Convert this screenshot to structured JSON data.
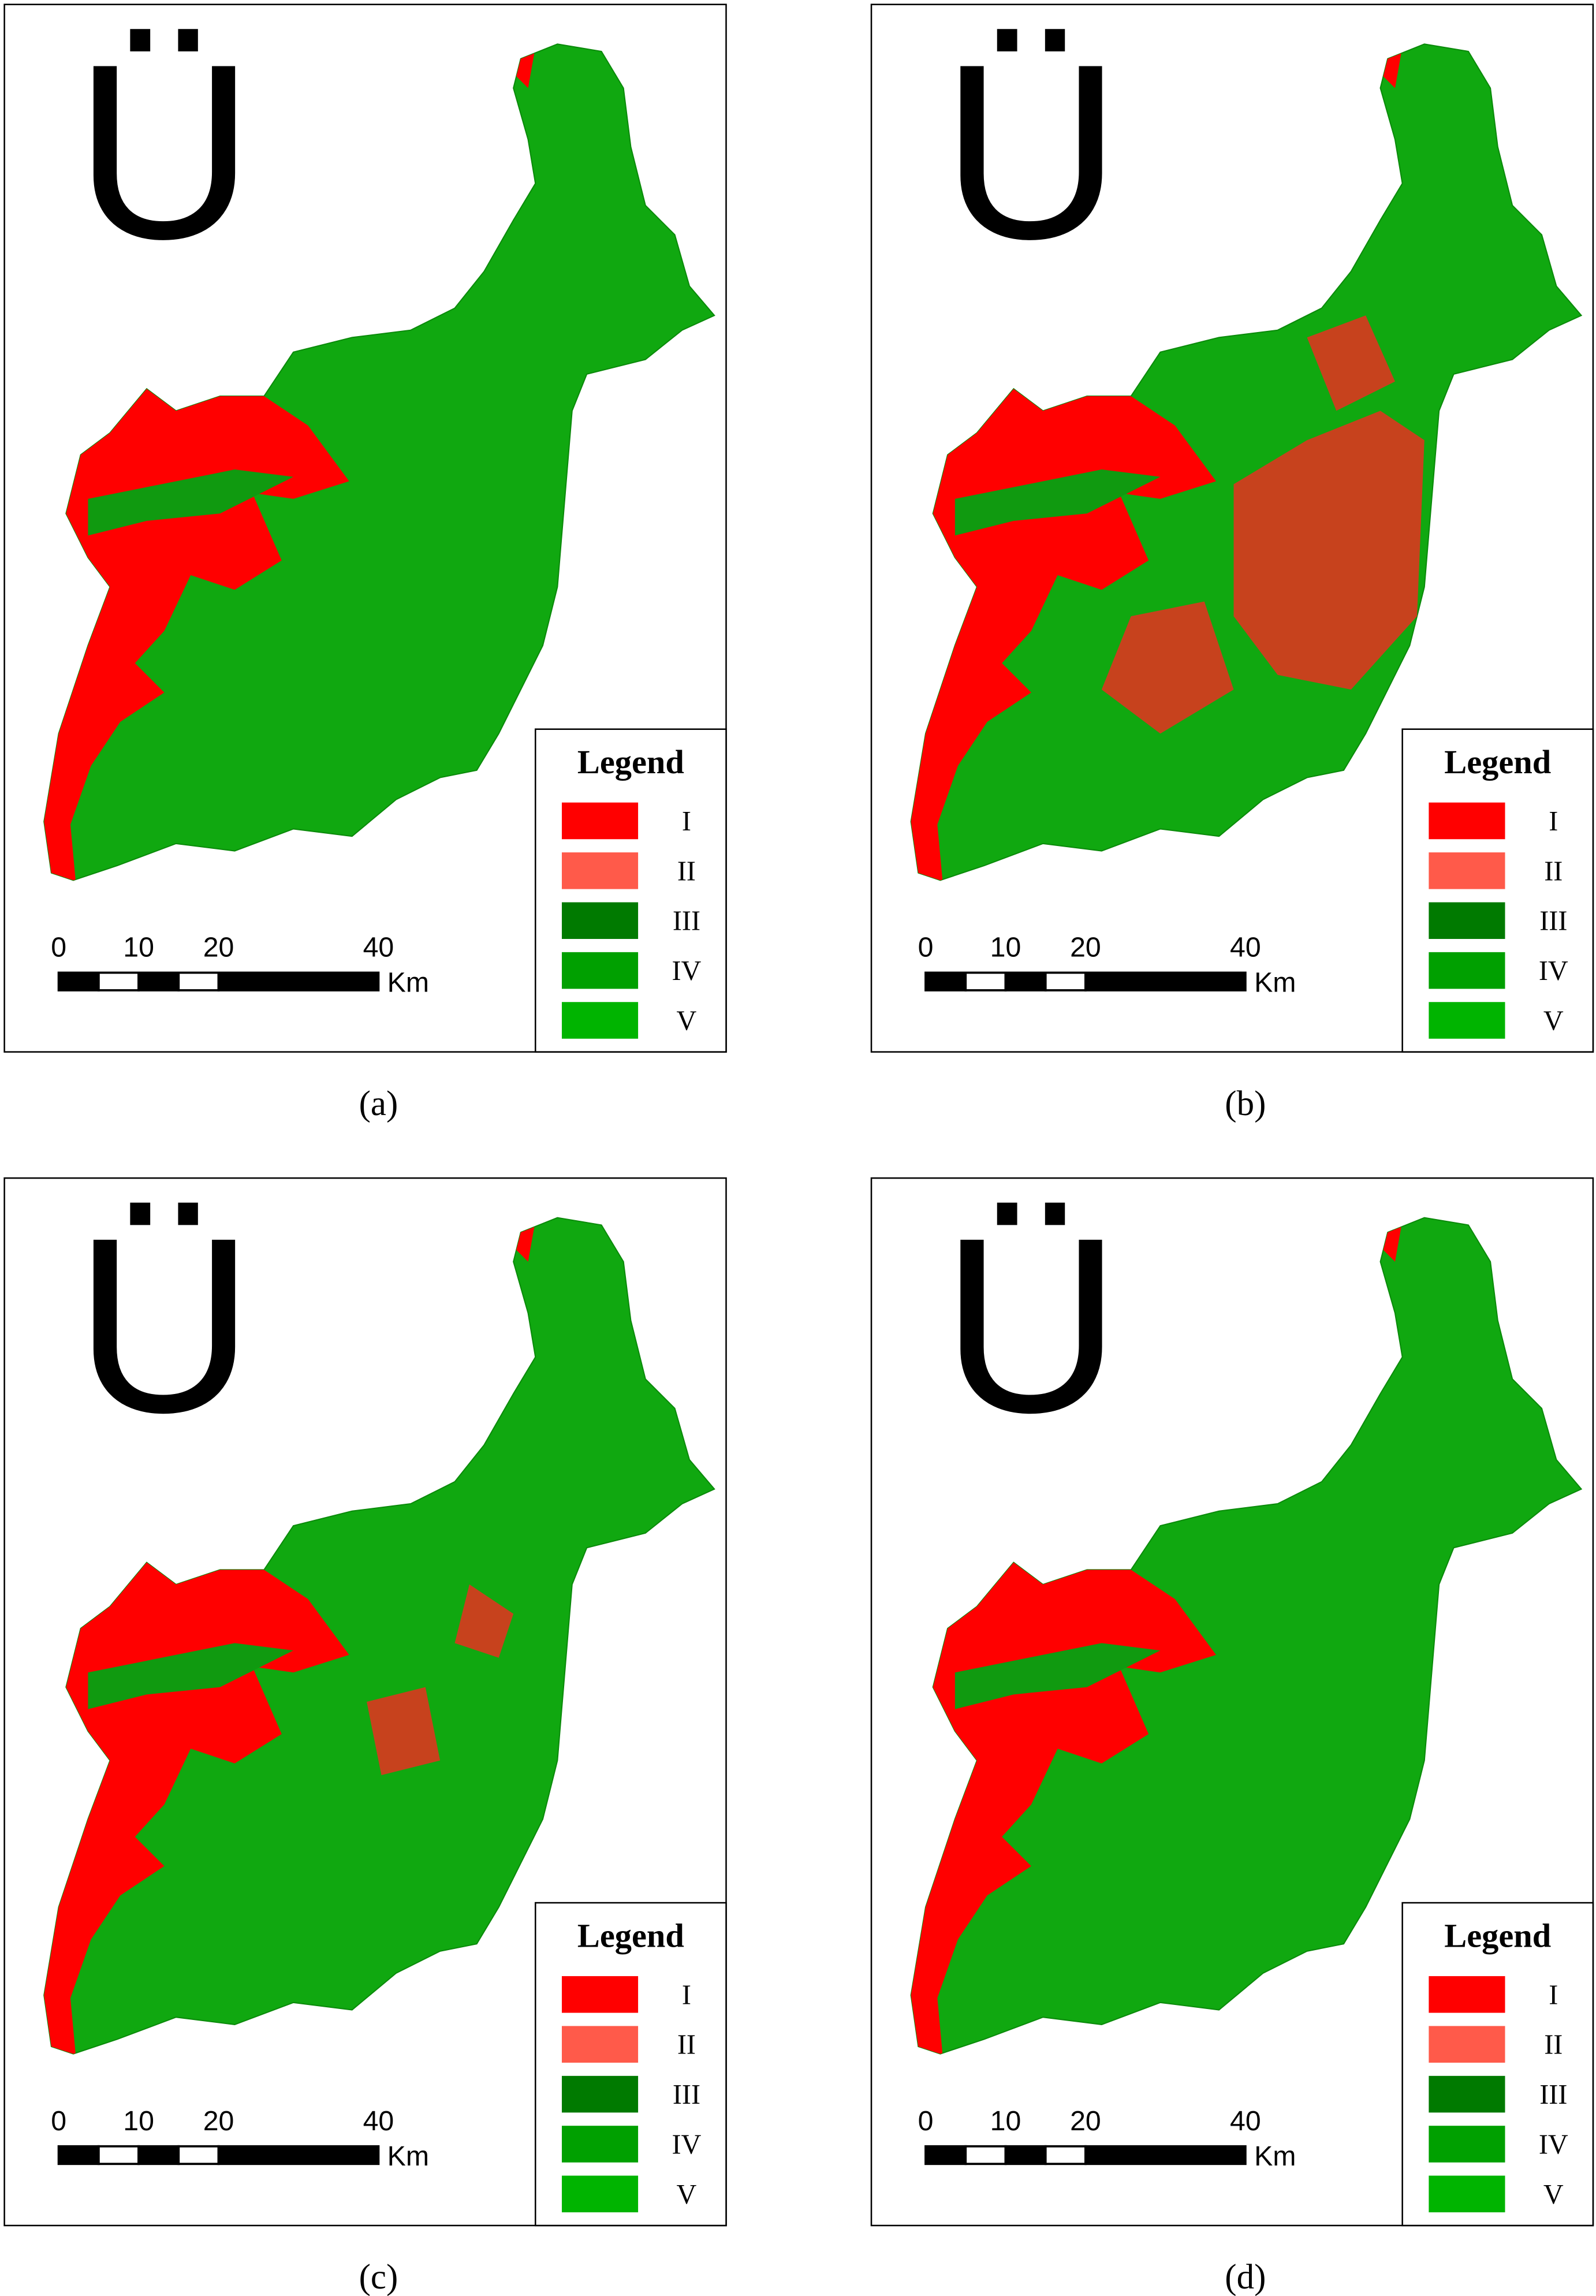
{
  "north_symbol": "Ü",
  "scale": {
    "ticks": [
      0,
      10,
      20,
      40
    ],
    "unit": "Km"
  },
  "legend": {
    "title": "Legend",
    "items": [
      {
        "label": "I",
        "color": "#ff0000"
      },
      {
        "label": "II",
        "color": "#ff5a4a"
      },
      {
        "label": "III",
        "color": "#007a00"
      },
      {
        "label": "IV",
        "color": "#00a000"
      },
      {
        "label": "V",
        "color": "#00b400"
      }
    ]
  },
  "panels": [
    {
      "caption": "(a)"
    },
    {
      "caption": "(b)"
    },
    {
      "caption": "(c)"
    },
    {
      "caption": "(d)"
    }
  ]
}
